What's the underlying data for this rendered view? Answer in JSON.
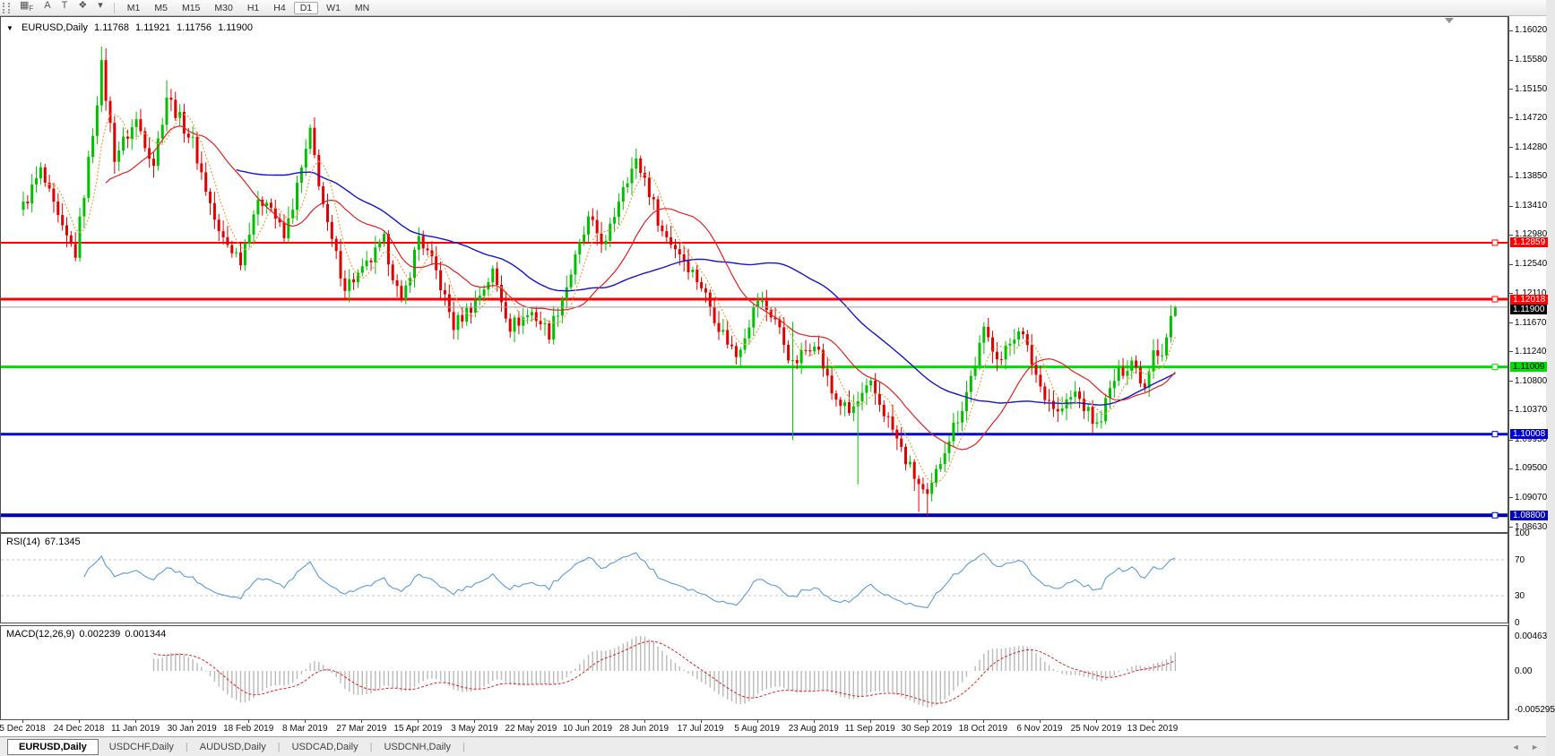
{
  "toolbar": {
    "icons": [
      {
        "name": "indicators-grid-icon",
        "glyph": "▦",
        "sub": "F"
      },
      {
        "name": "text-label-icon",
        "glyph": "A",
        "sub": ""
      },
      {
        "name": "text-box-icon",
        "glyph": "T",
        "sub": ""
      },
      {
        "name": "object-cycle-icon",
        "glyph": "❖",
        "sub": ""
      },
      {
        "name": "dropdown-caret-icon",
        "glyph": "▾",
        "sub": ""
      }
    ],
    "timeframes": [
      "M1",
      "M5",
      "M15",
      "M30",
      "H1",
      "H4",
      "D1",
      "W1",
      "MN"
    ],
    "active_timeframe": "D1"
  },
  "chart": {
    "symbol": "EURUSD,Daily",
    "dropdown_glyph": "▼",
    "ohlc": {
      "open": "1.11768",
      "high": "1.11921",
      "low": "1.11756",
      "close": "1.11900"
    }
  },
  "chart_data": {
    "type": "candlestick",
    "symbol": "EURUSD",
    "timeframe": "Daily",
    "ylim": [
      1.0855,
      1.1622
    ],
    "price_ticks": [
      "1.16020",
      "1.15580",
      "1.15150",
      "1.14720",
      "1.14280",
      "1.13850",
      "1.13410",
      "1.12980",
      "1.12540",
      "1.12110",
      "1.11670",
      "1.11240",
      "1.10800",
      "1.10370",
      "1.09930",
      "1.09500",
      "1.09070",
      "1.08630"
    ],
    "hlines": [
      {
        "price": 1.12859,
        "label": "1.12859",
        "color": "#ff0000",
        "text": "#ffffff",
        "width": 2
      },
      {
        "price": 1.12018,
        "label": "1.12018",
        "color": "#ff0000",
        "text": "#ffffff",
        "width": 3
      },
      {
        "price": 1.11009,
        "label": "1.11009",
        "color": "#00dd00",
        "text": "#000000",
        "width": 3
      },
      {
        "price": 1.10008,
        "label": "1.10008",
        "color": "#0000cd",
        "text": "#ffffff",
        "width": 3
      },
      {
        "price": 1.088,
        "label": "1.08800",
        "color": "#0000bb",
        "text": "#ffffff",
        "width": 4
      }
    ],
    "current_price": {
      "value": 1.119,
      "label": "1.11900"
    },
    "colors": {
      "bull": "#00c000",
      "bear": "#e00000"
    },
    "candles": {
      "count": 266,
      "x0": 25,
      "dx": 4.85,
      "last": [
        1.11768,
        1.11921,
        1.11756,
        1.119
      ],
      "anchors": [
        [
          0,
          1.134
        ],
        [
          4,
          1.1392
        ],
        [
          9,
          1.1302
        ],
        [
          12,
          1.127
        ],
        [
          16,
          1.1452
        ],
        [
          18,
          1.1548
        ],
        [
          21,
          1.1415
        ],
        [
          26,
          1.1468
        ],
        [
          30,
          1.1405
        ],
        [
          33,
          1.1505
        ],
        [
          36,
          1.147
        ],
        [
          39,
          1.1435
        ],
        [
          45,
          1.1298
        ],
        [
          50,
          1.1262
        ],
        [
          53,
          1.1332
        ],
        [
          56,
          1.1355
        ],
        [
          60,
          1.1292
        ],
        [
          63,
          1.1368
        ],
        [
          66,
          1.1448
        ],
        [
          70,
          1.1308
        ],
        [
          74,
          1.1222
        ],
        [
          78,
          1.1242
        ],
        [
          83,
          1.1288
        ],
        [
          87,
          1.1192
        ],
        [
          91,
          1.1296
        ],
        [
          95,
          1.1242
        ],
        [
          99,
          1.1162
        ],
        [
          104,
          1.1198
        ],
        [
          108,
          1.1242
        ],
        [
          112,
          1.1162
        ],
        [
          117,
          1.1182
        ],
        [
          121,
          1.1152
        ],
        [
          125,
          1.1222
        ],
        [
          130,
          1.1318
        ],
        [
          134,
          1.1282
        ],
        [
          138,
          1.1375
        ],
        [
          141,
          1.1405
        ],
        [
          143,
          1.1382
        ],
        [
          147,
          1.1302
        ],
        [
          151,
          1.1272
        ],
        [
          156,
          1.1222
        ],
        [
          160,
          1.1162
        ],
        [
          164,
          1.1118
        ],
        [
          169,
          1.1202
        ],
        [
          173,
          1.1172
        ],
        [
          177,
          1.1102
        ],
        [
          182,
          1.1142
        ],
        [
          186,
          1.1062
        ],
        [
          190,
          1.1032
        ],
        [
          195,
          1.1072
        ],
        [
          199,
          1.1022
        ],
        [
          203,
          1.0962
        ],
        [
          208,
          1.0902
        ],
        [
          212,
          1.0982
        ],
        [
          216,
          1.1042
        ],
        [
          221,
          1.1152
        ],
        [
          225,
          1.1112
        ],
        [
          229,
          1.1162
        ],
        [
          234,
          1.1072
        ],
        [
          238,
          1.1032
        ],
        [
          242,
          1.1062
        ],
        [
          247,
          1.1012
        ],
        [
          251,
          1.1082
        ],
        [
          255,
          1.1112
        ],
        [
          258,
          1.1072
        ],
        [
          260,
          1.1132
        ],
        [
          262,
          1.1118
        ],
        [
          263,
          1.1145
        ],
        [
          264,
          1.11768
        ],
        [
          265,
          1.119
        ]
      ],
      "wick_overrides": {
        "18": {
          "high": 1.1578
        },
        "33": {
          "high": 1.1528
        },
        "66": {
          "high": 1.1462
        },
        "177": {
          "low": 1.0992,
          "high": 1.1168
        },
        "192": {
          "low": 1.0926
        },
        "206": {
          "low": 1.0885
        },
        "208": {
          "low": 1.0879
        }
      }
    },
    "moving_averages": [
      {
        "name": "ma-slow",
        "period": 50,
        "color": "#1414c8",
        "width": 1.4,
        "dash": ""
      },
      {
        "name": "ma-mid",
        "period": 20,
        "color": "#dd2222",
        "width": 1.2,
        "dash": ""
      },
      {
        "name": "ma-fast",
        "period": 6,
        "color": "#e8a33d",
        "width": 1.2,
        "dash": "2,2"
      }
    ],
    "rsi": {
      "name": "RSI(14)",
      "value_text": "67.1345",
      "period": 14,
      "levels": [
        70,
        30
      ],
      "scale": [
        "100",
        "70",
        "30",
        "0"
      ],
      "color": "#5b9bd5"
    },
    "macd": {
      "name": "MACD(12,26,9)",
      "main_text": "0.002239",
      "signal_text": "0.001344",
      "fast": 12,
      "slow": 26,
      "signal": 9,
      "scale": [
        "0.00463",
        "0.00",
        "-0.005295"
      ],
      "bar_color": "#b9b9b9",
      "signal_color": "#dd2222"
    },
    "dates": [
      "5 Dec 2018",
      "24 Dec 2018",
      "11 Jan 2019",
      "30 Jan 2019",
      "18 Feb 2019",
      "8 Mar 2019",
      "27 Mar 2019",
      "15 Apr 2019",
      "3 May 2019",
      "22 May 2019",
      "10 Jun 2019",
      "28 Jun 2019",
      "17 Jul 2019",
      "5 Aug 2019",
      "23 Aug 2019",
      "11 Sep 2019",
      "30 Sep 2019",
      "18 Oct 2019",
      "6 Nov 2019",
      "25 Nov 2019",
      "13 Dec 2019"
    ],
    "date_step": 13
  },
  "tabs": {
    "items": [
      "EURUSD,Daily",
      "USDCHF,Daily",
      "AUDUSD,Daily",
      "USDCAD,Daily",
      "USDCNH,Daily"
    ],
    "active": "EURUSD,Daily"
  },
  "nav": {
    "left": "◄",
    "right": "►"
  }
}
